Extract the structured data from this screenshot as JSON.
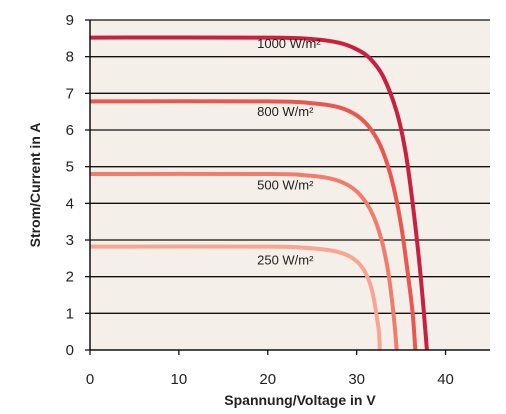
{
  "chart_data": {
    "type": "line",
    "title": "",
    "xlabel": "Spannung/Voltage in V",
    "ylabel": "Strom/Current in A",
    "xlim": [
      0,
      45
    ],
    "ylim": [
      0,
      9
    ],
    "xticks": [
      0,
      10,
      20,
      30,
      40
    ],
    "yticks": [
      0,
      1,
      2,
      3,
      4,
      5,
      6,
      7,
      8,
      9
    ],
    "grid": "horizontal",
    "plot_background": "#f4efe9",
    "series": [
      {
        "name": "1000 W/m²",
        "color": "#c8203e",
        "points": [
          [
            0,
            8.52
          ],
          [
            20,
            8.52
          ],
          [
            25,
            8.48
          ],
          [
            28,
            8.38
          ],
          [
            30,
            8.2
          ],
          [
            31.5,
            7.95
          ],
          [
            33,
            7.45
          ],
          [
            34.5,
            6.5
          ],
          [
            35.5,
            5.4
          ],
          [
            36.3,
            4.0
          ],
          [
            37,
            2.5
          ],
          [
            37.5,
            1.2
          ],
          [
            37.9,
            0
          ]
        ]
      },
      {
        "name": "800 W/m²",
        "color": "#e8584e",
        "points": [
          [
            0,
            6.78
          ],
          [
            20,
            6.78
          ],
          [
            25,
            6.73
          ],
          [
            28,
            6.62
          ],
          [
            30,
            6.4
          ],
          [
            31.5,
            6.05
          ],
          [
            32.8,
            5.5
          ],
          [
            34,
            4.6
          ],
          [
            35,
            3.4
          ],
          [
            35.8,
            2.0
          ],
          [
            36.3,
            1.0
          ],
          [
            36.6,
            0
          ]
        ]
      },
      {
        "name": "500 W/m²",
        "color": "#f07d6c",
        "points": [
          [
            0,
            4.8
          ],
          [
            20,
            4.8
          ],
          [
            24,
            4.77
          ],
          [
            27,
            4.68
          ],
          [
            29,
            4.5
          ],
          [
            30.5,
            4.2
          ],
          [
            31.8,
            3.7
          ],
          [
            32.8,
            3.0
          ],
          [
            33.5,
            2.2
          ],
          [
            34,
            1.3
          ],
          [
            34.3,
            0.6
          ],
          [
            34.5,
            0
          ]
        ]
      },
      {
        "name": "250 W/m²",
        "color": "#f8a592",
        "points": [
          [
            0,
            2.82
          ],
          [
            20,
            2.82
          ],
          [
            24,
            2.79
          ],
          [
            27,
            2.72
          ],
          [
            29,
            2.58
          ],
          [
            30.3,
            2.35
          ],
          [
            31.2,
            2.0
          ],
          [
            31.8,
            1.55
          ],
          [
            32.2,
            1.0
          ],
          [
            32.5,
            0.5
          ],
          [
            32.6,
            0
          ]
        ]
      }
    ],
    "labels": [
      {
        "text": "1000 W/m²",
        "x": 18.8,
        "y": 8.23
      },
      {
        "text": "800 W/m²",
        "x": 18.8,
        "y": 6.38
      },
      {
        "text": "500 W/m²",
        "x": 18.8,
        "y": 4.38
      },
      {
        "text": "250 W/m²",
        "x": 18.8,
        "y": 2.33
      }
    ]
  }
}
